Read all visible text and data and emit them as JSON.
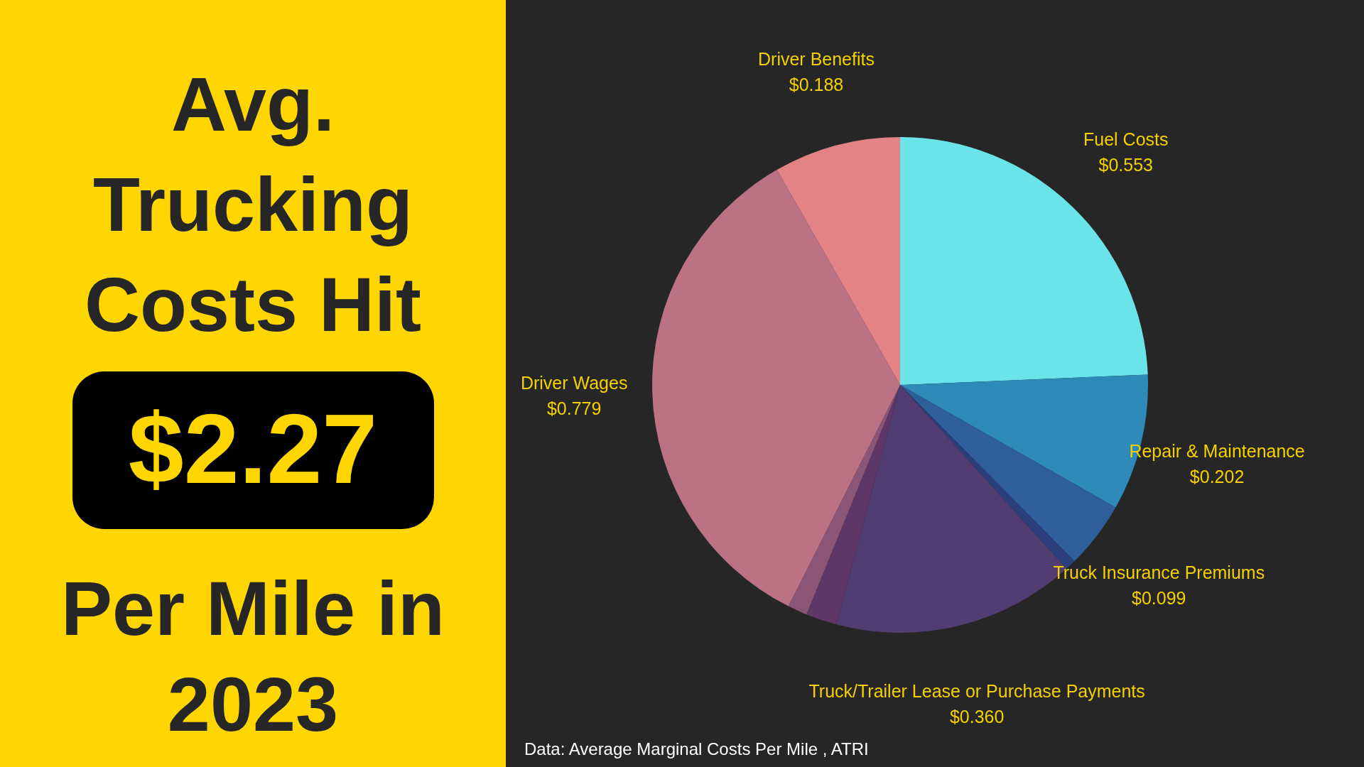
{
  "chart_data": {
    "type": "pie",
    "title": "Avg. Trucking Costs Hit",
    "subtitle": "$2.27",
    "annotations": [
      "Per Mile in 2023",
      "Data: Average Marginal Costs Per Mile , ATRI"
    ],
    "categories": [
      "Fuel Costs",
      "Repair & Maintenance",
      "Truck Insurance Premiums",
      null,
      "Truck/Trailer Lease or Purchase Payments",
      null,
      null,
      "Driver Wages",
      "Driver Benefits"
    ],
    "values": [
      0.553,
      0.202,
      0.099,
      0.016,
      0.36,
      0.046,
      0.029,
      0.779,
      0.188
    ],
    "value_labels": [
      "$0.553",
      "$0.202",
      "$0.099",
      null,
      "$0.360",
      null,
      null,
      "$0.779",
      "$0.188"
    ],
    "colors": [
      "#6ae4e8",
      "#2e8ab8",
      "#2f5f9a",
      "#2b3f7a",
      "#523d72",
      "#5e3668",
      "#8a5577",
      "#bb7285",
      "#e38387"
    ]
  }
}
